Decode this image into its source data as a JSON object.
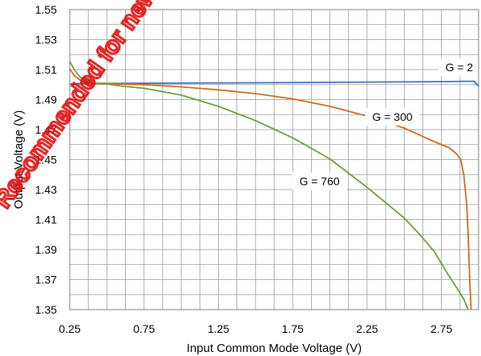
{
  "chart_data": {
    "type": "line",
    "xlabel": "Input Common Mode Voltage (V)",
    "ylabel": "Output Voltage (V)",
    "xlim": [
      0.25,
      3.0
    ],
    "ylim": [
      1.35,
      1.55
    ],
    "x_ticks": [
      "0.25",
      "0.75",
      "1.25",
      "1.75",
      "2.25",
      "2.75"
    ],
    "y_ticks": [
      "1.35",
      "1.37",
      "1.39",
      "1.41",
      "1.43",
      "1.45",
      "1.47",
      "1.49",
      "1.51",
      "1.53",
      "1.55"
    ],
    "grid": true,
    "series": [
      {
        "name": "G = 2",
        "color": "#3a6fb7",
        "x": [
          0.25,
          0.35,
          0.5,
          1.0,
          1.5,
          2.0,
          2.5,
          2.8,
          2.9,
          2.97,
          3.0
        ],
        "y": [
          1.5005,
          1.5008,
          1.5008,
          1.501,
          1.5012,
          1.5015,
          1.5018,
          1.502,
          1.5022,
          1.5022,
          1.499
        ]
      },
      {
        "name": "G = 300",
        "color": "#d2691e",
        "x": [
          0.25,
          0.28,
          0.32,
          0.36,
          0.4,
          0.5,
          0.75,
          1.0,
          1.25,
          1.5,
          1.75,
          2.0,
          2.25,
          2.5,
          2.6,
          2.7,
          2.8,
          2.85,
          2.88,
          2.9,
          2.92,
          2.93,
          2.94,
          2.95
        ],
        "y": [
          1.5105,
          1.506,
          1.503,
          1.5015,
          1.501,
          1.5008,
          1.5,
          1.4985,
          1.4965,
          1.494,
          1.4905,
          1.4855,
          1.479,
          1.471,
          1.4665,
          1.462,
          1.458,
          1.454,
          1.45,
          1.44,
          1.42,
          1.4,
          1.37,
          1.35
        ]
      },
      {
        "name": "G = 760",
        "color": "#6a9e3a",
        "x": [
          0.25,
          0.28,
          0.32,
          0.36,
          0.4,
          0.5,
          0.6,
          0.75,
          1.0,
          1.25,
          1.5,
          1.75,
          2.0,
          2.25,
          2.5,
          2.6,
          2.7,
          2.8,
          2.85,
          2.9,
          2.93
        ],
        "y": [
          1.5155,
          1.51,
          1.505,
          1.5025,
          1.501,
          1.5005,
          1.499,
          1.4975,
          1.493,
          1.4855,
          1.476,
          1.4645,
          1.4505,
          1.4315,
          1.411,
          1.4005,
          1.389,
          1.3725,
          1.365,
          1.357,
          1.35
        ]
      }
    ],
    "annotations": [
      {
        "text": "G = 2",
        "x": 2.87,
        "y": 1.5115
      },
      {
        "text": "G = 300",
        "x": 2.42,
        "y": 1.4785
      },
      {
        "text": "G = 760",
        "x": 1.93,
        "y": 1.4355
      }
    ]
  },
  "watermark": "Recommended for new designs (OBS)"
}
